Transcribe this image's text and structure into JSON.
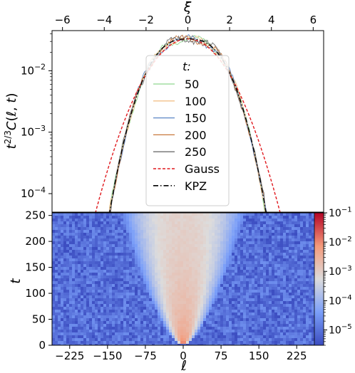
{
  "chart_data": [
    {
      "type": "line",
      "panel": "top",
      "ylabel": "t^{2/3}C(ℓ, t)",
      "xlabel_top": "ξ",
      "yscale": "log",
      "ylim": [
        5e-05,
        0.045
      ],
      "xlim": [
        -6.5,
        6.5
      ],
      "xticks": [
        "−6",
        "−4",
        "−2",
        "0",
        "2",
        "4",
        "6"
      ],
      "yticks": [
        "10^{-4}",
        "10^{-3}",
        "10^{-2}"
      ],
      "legend": {
        "title": "t:",
        "placement": "center",
        "entries": [
          "50",
          "100",
          "150",
          "200",
          "250",
          "Gauss",
          "KPZ"
        ]
      },
      "series": [
        {
          "name": "50",
          "color": "#8fd78f",
          "style": "solid",
          "noise_seed": 11,
          "peak": 0.033,
          "noise_amp": 0.35
        },
        {
          "name": "100",
          "color": "#f2c08a",
          "style": "solid",
          "noise_seed": 23,
          "peak": 0.033,
          "noise_amp": 0.45
        },
        {
          "name": "150",
          "color": "#5a86c6",
          "style": "solid",
          "noise_seed": 37,
          "peak": 0.033,
          "noise_amp": 0.55
        },
        {
          "name": "200",
          "color": "#c8783c",
          "style": "solid",
          "noise_seed": 51,
          "peak": 0.033,
          "noise_amp": 0.65
        },
        {
          "name": "250",
          "color": "#6f6f6f",
          "style": "solid",
          "noise_seed": 67,
          "peak": 0.033,
          "noise_amp": 0.8
        },
        {
          "name": "Gauss",
          "color": "#e0191e",
          "style": "dashed",
          "peak": 0.033
        },
        {
          "name": "KPZ",
          "color": "#000000",
          "style": "dashdot",
          "peak": 0.033
        }
      ]
    },
    {
      "type": "heatmap",
      "panel": "bottom",
      "xlabel": "ℓ",
      "ylabel": "t",
      "xlim": [
        -260,
        260
      ],
      "ylim": [
        0,
        255
      ],
      "xticks": [
        "−225",
        "−150",
        "−75",
        "0",
        "75",
        "150",
        "225"
      ],
      "yticks": [
        "0",
        "50",
        "100",
        "150",
        "200",
        "250"
      ],
      "colorbar": {
        "scale": "log",
        "range": [
          3e-06,
          0.1
        ],
        "ticks": [
          "10^{-5}",
          "10^{-4}",
          "10^{-3}",
          "10^{-2}",
          "10^{-1}"
        ],
        "colormap": "coolwarm"
      }
    }
  ]
}
